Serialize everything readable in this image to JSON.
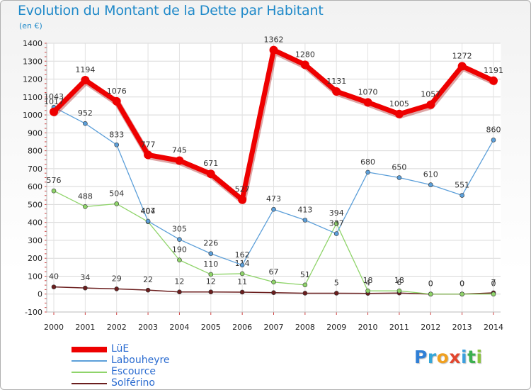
{
  "title": "Evolution du Montant de la Dette par Habitant",
  "unit": "(en €)",
  "brand": {
    "letters": [
      {
        "ch": "P",
        "color": "#2f7fd6"
      },
      {
        "ch": "r",
        "color": "#35a6d8"
      },
      {
        "ch": "o",
        "color": "#f0a020"
      },
      {
        "ch": "x",
        "color": "#e2462e"
      },
      {
        "ch": "i",
        "color": "#3b9fde"
      },
      {
        "ch": "t",
        "color": "#3bb04f"
      },
      {
        "ch": "i",
        "color": "#8bc440"
      }
    ]
  },
  "chart_data": {
    "type": "line",
    "title": "Evolution du Montant de la Dette par Habitant",
    "ylabel": "(en €)",
    "xlabel": "",
    "x": [
      2000,
      2001,
      2002,
      2003,
      2004,
      2005,
      2006,
      2007,
      2008,
      2009,
      2010,
      2011,
      2012,
      2013,
      2014
    ],
    "ylim": [
      -100,
      1400
    ],
    "yticks": [
      -100,
      0,
      100,
      200,
      300,
      400,
      500,
      600,
      700,
      800,
      900,
      1000,
      1100,
      1200,
      1300,
      1400
    ],
    "grid": true,
    "legend_position": "bottom-left",
    "series": [
      {
        "name": "Solférino",
        "color": "#6b1e1e",
        "values": [
          40,
          34,
          29,
          22,
          12,
          12,
          11,
          8,
          5,
          5,
          4,
          6,
          0,
          0,
          7
        ],
        "labels": [
          "40",
          "34",
          "29",
          "22",
          "12",
          "12",
          "11",
          "",
          "",
          "5",
          "4",
          "6",
          "0",
          "0",
          "7"
        ]
      },
      {
        "name": "Escource",
        "color": "#8fd46a",
        "values": [
          576,
          488,
          504,
          404,
          190,
          110,
          114,
          67,
          51,
          394,
          18,
          18,
          0,
          0,
          0
        ],
        "labels": [
          "576",
          "488",
          "504",
          "404",
          "190",
          "110",
          "114",
          "67",
          "51",
          "394",
          "18",
          "18",
          "0",
          "0",
          "0"
        ]
      },
      {
        "name": "Labouheyre",
        "color": "#5c9fd9",
        "values": [
          1043,
          952,
          833,
          407,
          305,
          226,
          162,
          473,
          413,
          337,
          680,
          650,
          610,
          551,
          860
        ],
        "labels": [
          "1043",
          "952",
          "833",
          "407",
          "305",
          "226",
          "162",
          "473",
          "413",
          "337",
          "680",
          "650",
          "610",
          "551",
          "860"
        ]
      },
      {
        "name": "LüE",
        "color": "#ee0000",
        "values": [
          1017,
          1194,
          1076,
          777,
          745,
          671,
          527,
          1362,
          1280,
          1131,
          1070,
          1005,
          1057,
          1272,
          1191
        ],
        "labels": [
          "1017",
          "1194",
          "1076",
          "777",
          "745",
          "671",
          "527",
          "1362",
          "1280",
          "1131",
          "1070",
          "1005",
          "1057",
          "1272",
          "1191"
        ]
      }
    ],
    "legend_order": [
      "LüE",
      "Labouheyre",
      "Escource",
      "Solférino"
    ]
  }
}
